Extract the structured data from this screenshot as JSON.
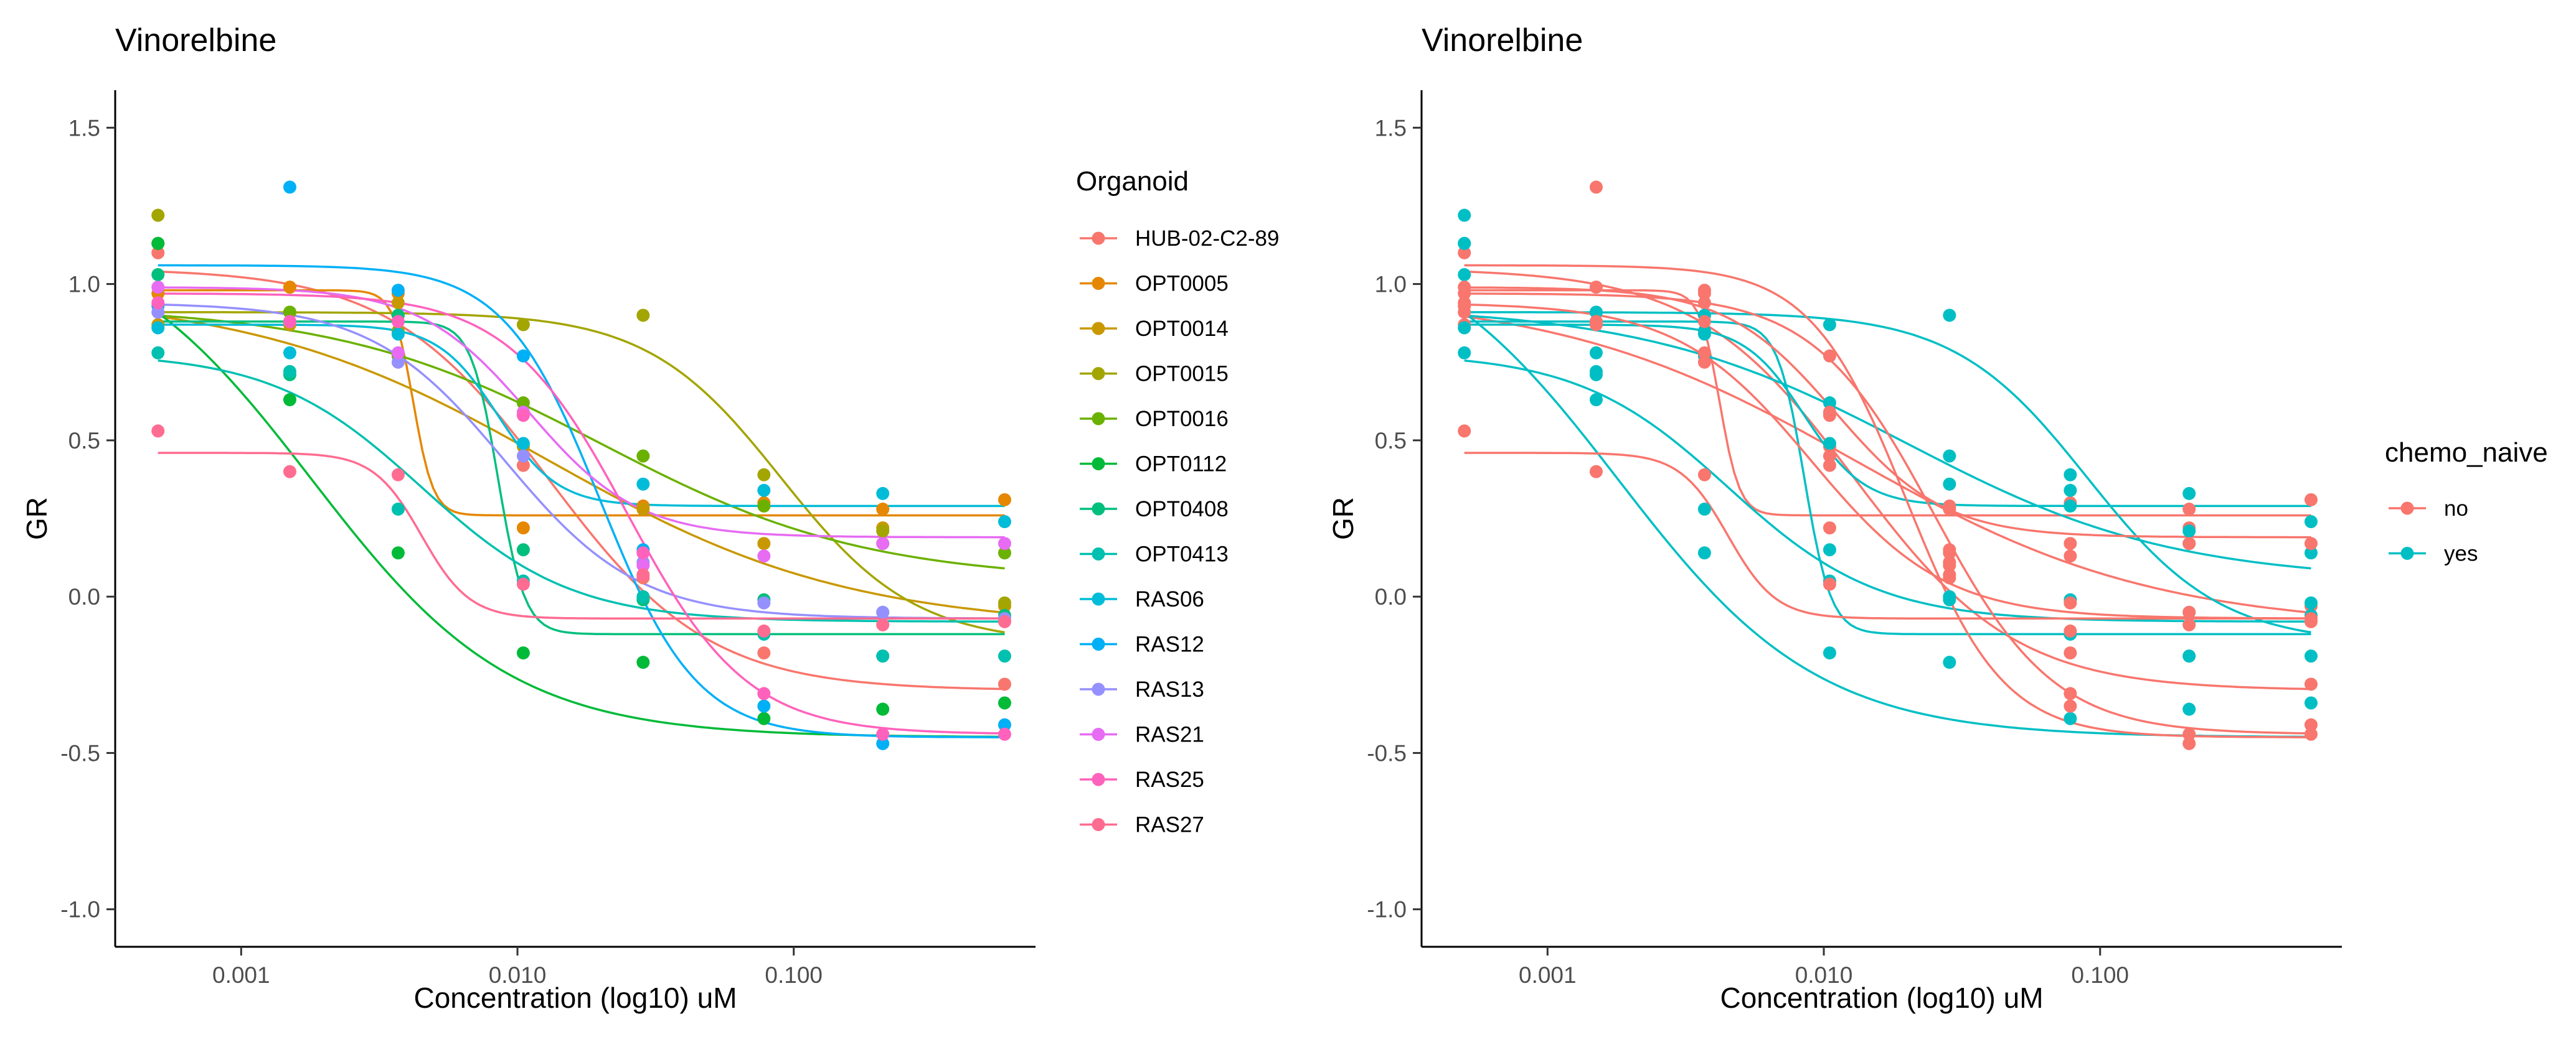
{
  "chart_data": [
    {
      "type": "scatter",
      "title": "Vinorelbine",
      "xlabel": "Concentration (log10) uM",
      "ylabel": "GR",
      "x_scale": "log10",
      "xlim": [
        0.00035,
        0.75
      ],
      "ylim": [
        -1.12,
        1.62
      ],
      "x_ticks": [
        0.001,
        0.01,
        0.1
      ],
      "x_tick_labels": [
        "0.001",
        "0.010",
        "0.100"
      ],
      "y_ticks": [
        1.5,
        1.0,
        0.5,
        0.0,
        -0.5,
        -1.0
      ],
      "y_tick_labels": [
        "1.5",
        "1.0",
        "0.5",
        "0.0",
        "-0.5",
        "-1.0"
      ],
      "grid": false,
      "legend_title": "Organoid",
      "legend_position": "right",
      "x": [
        0.0005,
        0.0015,
        0.0037,
        0.0105,
        0.0285,
        0.078,
        0.21,
        0.58
      ],
      "series": [
        {
          "name": "HUB-02-C2-89",
          "color": "#F8766D",
          "values": [
            1.1,
            0.99,
            0.77,
            0.42,
            0.06,
            -0.18,
            -0.19,
            -0.28
          ],
          "fit": [
            1.05,
            -0.3,
            0.013,
            1.5
          ]
        },
        {
          "name": "OPT0005",
          "color": "#E58700",
          "values": [
            0.97,
            0.99,
            0.97,
            0.22,
            0.29,
            0.3,
            0.28,
            0.31
          ],
          "fit": [
            0.98,
            0.26,
            0.0042,
            12
          ]
        },
        {
          "name": "OPT0014",
          "color": "#C99800",
          "values": [
            0.87,
            0.87,
            0.94,
            0.48,
            0.28,
            0.17,
            0.22,
            -0.03
          ],
          "fit": [
            0.97,
            -0.1,
            0.013,
            0.8
          ]
        },
        {
          "name": "OPT0015",
          "color": "#A3A500",
          "values": [
            1.22,
            0.91,
            0.85,
            0.87,
            0.9,
            0.39,
            0.21,
            -0.02
          ],
          "fit": [
            0.91,
            -0.15,
            0.09,
            1.8
          ]
        },
        {
          "name": "OPT0016",
          "color": "#6BB100",
          "values": [
            1.13,
            0.91,
            0.77,
            0.62,
            0.45,
            0.29,
            0.17,
            0.14
          ],
          "fit": [
            0.93,
            0.05,
            0.02,
            0.9
          ]
        },
        {
          "name": "OPT0112",
          "color": "#00BA38",
          "values": [
            1.13,
            0.63,
            0.14,
            -0.18,
            -0.21,
            -0.39,
            -0.36,
            -0.34
          ],
          "fit": [
            1.2,
            -0.45,
            0.0018,
            1.2
          ]
        },
        {
          "name": "OPT0408",
          "color": "#00BF7D",
          "values": [
            1.03,
            0.71,
            0.9,
            0.15,
            -0.01,
            -0.01,
            -0.05,
            -0.06
          ],
          "fit": [
            0.88,
            -0.12,
            0.0085,
            9
          ]
        },
        {
          "name": "OPT0413",
          "color": "#00C0AF",
          "values": [
            0.78,
            0.72,
            0.28,
            0.05,
            0.0,
            -0.12,
            -0.19,
            -0.19
          ],
          "fit": [
            0.78,
            -0.08,
            0.0045,
            1.6
          ]
        },
        {
          "name": "RAS06",
          "color": "#00BCD8",
          "values": [
            0.86,
            0.78,
            0.84,
            0.49,
            0.36,
            0.34,
            0.33,
            0.24
          ],
          "fit": [
            0.87,
            0.29,
            0.0085,
            4
          ]
        },
        {
          "name": "RAS12",
          "color": "#00B0F6",
          "values": [
            0.93,
            1.31,
            0.98,
            0.77,
            0.15,
            -0.35,
            -0.47,
            -0.41
          ],
          "fit": [
            1.06,
            -0.45,
            0.02,
            2.5
          ]
        },
        {
          "name": "RAS13",
          "color": "#9590FF",
          "values": [
            0.91,
            0.88,
            0.75,
            0.45,
            0.11,
            -0.02,
            -0.05,
            -0.07
          ],
          "fit": [
            0.94,
            -0.07,
            0.009,
            1.8
          ]
        },
        {
          "name": "RAS21",
          "color": "#E76BF3",
          "values": [
            0.99,
            0.88,
            0.78,
            0.59,
            0.1,
            0.13,
            0.17,
            0.17
          ],
          "fit": [
            0.99,
            0.19,
            0.011,
            2.2
          ]
        },
        {
          "name": "RAS25",
          "color": "#FF62BC",
          "values": [
            0.94,
            0.88,
            0.88,
            0.58,
            0.14,
            -0.31,
            -0.44,
            -0.44
          ],
          "fit": [
            0.97,
            -0.44,
            0.025,
            2.0
          ]
        },
        {
          "name": "RAS27",
          "color": "#FF6C91",
          "values": [
            0.53,
            0.4,
            0.39,
            0.04,
            0.07,
            -0.11,
            -0.09,
            -0.08
          ],
          "fit": [
            0.46,
            -0.07,
            0.0045,
            5
          ]
        }
      ]
    },
    {
      "type": "scatter",
      "title": "Vinorelbine",
      "xlabel": "Concentration (log10) uM",
      "ylabel": "GR",
      "x_scale": "log10",
      "xlim": [
        0.00035,
        0.75
      ],
      "ylim": [
        -1.12,
        1.62
      ],
      "x_ticks": [
        0.001,
        0.01,
        0.1
      ],
      "x_tick_labels": [
        "0.001",
        "0.010",
        "0.100"
      ],
      "y_ticks": [
        1.5,
        1.0,
        0.5,
        0.0,
        -0.5,
        -1.0
      ],
      "y_tick_labels": [
        "1.5",
        "1.0",
        "0.5",
        "0.0",
        "-0.5",
        "-1.0"
      ],
      "grid": false,
      "legend_title": "chemo_naive",
      "legend_position": "right",
      "x": [
        0.0005,
        0.0015,
        0.0037,
        0.0105,
        0.0285,
        0.078,
        0.21,
        0.58
      ],
      "series": [
        {
          "name": "no",
          "color": "#F8766D",
          "members": [
            "HUB-02-C2-89",
            "OPT0005",
            "OPT0014",
            "RAS12",
            "RAS13",
            "RAS21",
            "RAS25",
            "RAS27"
          ]
        },
        {
          "name": "yes",
          "color": "#00BFC4",
          "members": [
            "OPT0015",
            "OPT0016",
            "OPT0112",
            "OPT0408",
            "OPT0413",
            "RAS06"
          ]
        }
      ]
    }
  ]
}
